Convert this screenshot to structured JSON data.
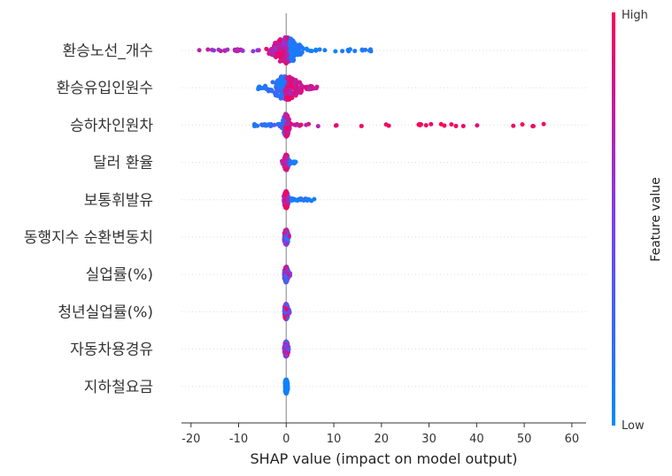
{
  "chart_data": {
    "type": "scatter",
    "subtype": "shap-beeswarm",
    "xlabel": "SHAP value (impact on model output)",
    "xlim": [
      -22,
      63
    ],
    "xticks": [
      -20,
      -10,
      0,
      10,
      20,
      30,
      40,
      50,
      60
    ],
    "features": [
      {
        "name": "환승노선_개수",
        "min": -19,
        "max": 19,
        "low_side": "right",
        "core_halfwidth": 2.5,
        "max_spread": 0.32
      },
      {
        "name": "환승유입인원수",
        "min": -6,
        "max": 7,
        "low_side": "left",
        "core_halfwidth": 2.5,
        "max_spread": 0.3
      },
      {
        "name": "승하차인원차",
        "min": -7,
        "max": 59,
        "low_side": "left",
        "core_halfwidth": 0.6,
        "max_spread": 0.28
      },
      {
        "name": "달러 환율",
        "min": -1,
        "max": 2,
        "low_side": "right",
        "core_halfwidth": 0.4,
        "max_spread": 0.18
      },
      {
        "name": "보통휘발유",
        "min": -0.5,
        "max": 6,
        "low_side": "right",
        "core_halfwidth": 0.4,
        "max_spread": 0.2
      },
      {
        "name": "동행지수 순환변동치",
        "min": -0.4,
        "max": 0.6,
        "low_side": "mixed",
        "core_halfwidth": 0.35,
        "max_spread": 0.18
      },
      {
        "name": "실업률(%)",
        "min": -0.4,
        "max": 0.8,
        "low_side": "mixed",
        "core_halfwidth": 0.35,
        "max_spread": 0.18
      },
      {
        "name": "청년실업률(%)",
        "min": -0.4,
        "max": 0.7,
        "low_side": "mixed",
        "core_halfwidth": 0.35,
        "max_spread": 0.18
      },
      {
        "name": "자동차용경유",
        "min": -0.4,
        "max": 0.5,
        "low_side": "mixed",
        "core_halfwidth": 0.35,
        "max_spread": 0.18
      },
      {
        "name": "지하철요금",
        "min": -0.2,
        "max": 0.3,
        "low_side": "all",
        "core_halfwidth": 0.25,
        "max_spread": 0.16
      }
    ],
    "colorbar": {
      "title": "Feature value",
      "high_label": "High",
      "low_label": "Low",
      "high_color": "#ff0052",
      "mid_color": "#7c3ff0",
      "low_color": "#008bfb"
    }
  }
}
